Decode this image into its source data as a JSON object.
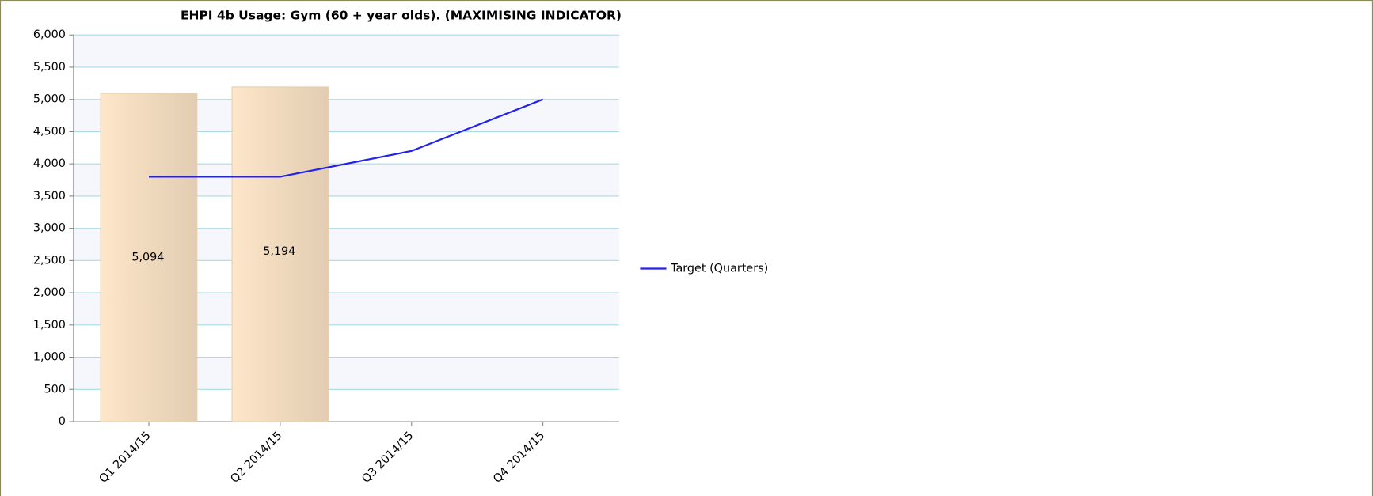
{
  "chart_data": {
    "type": "bar",
    "title": "EHPI 4b Usage: Gym (60 + year olds). (MAXIMISING INDICATOR)",
    "categories": [
      "Q1 2014/15",
      "Q2 2014/15",
      "Q3 2014/15",
      "Q4 2014/15"
    ],
    "values": [
      5094,
      5194,
      null,
      null
    ],
    "value_labels": [
      "5,094",
      "5,194",
      null,
      null
    ],
    "color": "#f5d9b8",
    "series": [
      {
        "name": "Target (Quarters)",
        "color": "#2222ee",
        "type": "line",
        "values": [
          3800,
          3800,
          4200,
          5000
        ]
      }
    ],
    "ylim": [
      0,
      6000
    ],
    "yticks": [
      0,
      500,
      {
        "value": 1000,
        "label": "1,000"
      },
      {
        "value": 1500,
        "label": "1,500"
      },
      {
        "value": 2000,
        "label": "2,000"
      },
      {
        "value": 2500,
        "label": "2,500"
      },
      {
        "value": 3000,
        "label": "3,000"
      },
      {
        "value": 3500,
        "label": "3,500"
      },
      {
        "value": 4000,
        "label": "4,000"
      },
      {
        "value": 4500,
        "label": "4,500"
      },
      {
        "value": 5000,
        "label": "5,000"
      },
      {
        "value": 5500,
        "label": "5,500"
      },
      {
        "value": 6000,
        "label": "6,000"
      }
    ],
    "grid": true,
    "legend": "right"
  }
}
